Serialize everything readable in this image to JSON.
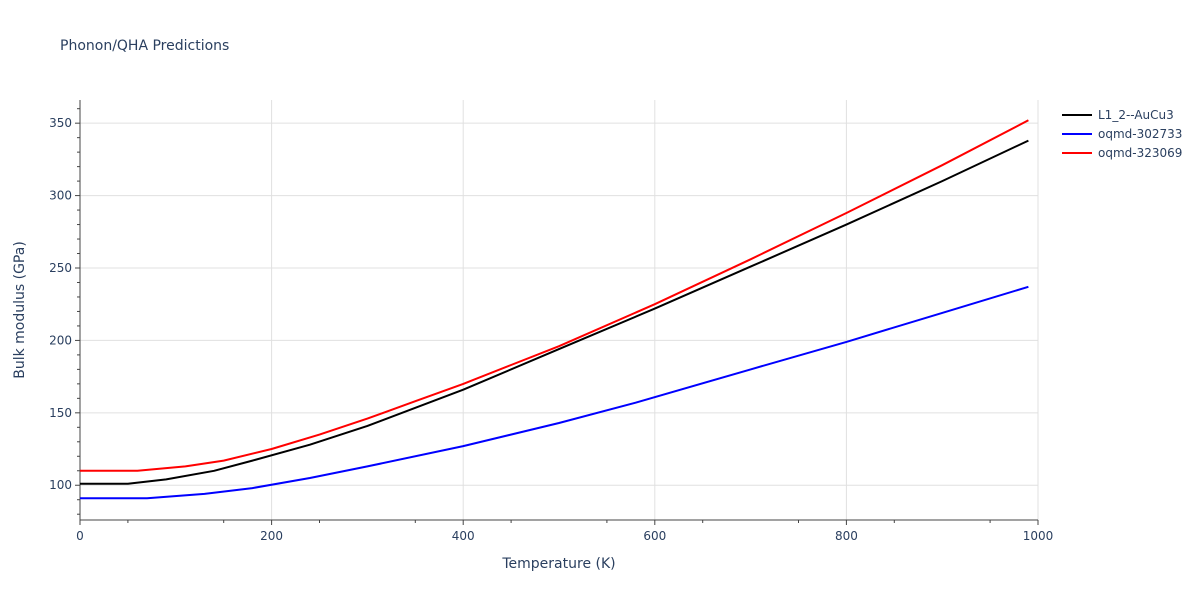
{
  "chart_data": {
    "type": "line",
    "title": "Phonon/QHA Predictions",
    "xlabel": "Temperature (K)",
    "ylabel": "Bulk modulus (GPa)",
    "xlim": [
      0,
      1000
    ],
    "ylim": [
      76,
      366
    ],
    "xticks": [
      0,
      200,
      400,
      600,
      800,
      1000
    ],
    "yticks": [
      100,
      150,
      200,
      250,
      300,
      350
    ],
    "grid": true,
    "legend_position": "top-right",
    "series": [
      {
        "name": "L1_2--AuCu3",
        "color": "#000000",
        "x": [
          0,
          50,
          90,
          140,
          180,
          240,
          300,
          400,
          500,
          600,
          700,
          800,
          900,
          990
        ],
        "y": [
          101,
          101,
          104,
          110,
          117,
          128,
          141,
          166,
          194,
          222,
          251,
          280,
          310,
          338
        ]
      },
      {
        "name": "oqmd-302733",
        "color": "#0000ff",
        "x": [
          0,
          70,
          130,
          180,
          240,
          300,
          400,
          500,
          580,
          700,
          800,
          900,
          990
        ],
        "y": [
          91,
          91,
          94,
          98,
          105,
          113,
          127,
          143,
          157,
          180,
          199,
          219,
          237
        ]
      },
      {
        "name": "oqmd-323069",
        "color": "#ff0000",
        "x": [
          0,
          60,
          110,
          150,
          200,
          250,
          300,
          350,
          400,
          450,
          500,
          600,
          700,
          800,
          900,
          990
        ],
        "y": [
          110,
          110,
          113,
          117,
          125,
          135,
          146,
          158,
          170,
          183,
          196,
          225,
          256,
          288,
          321,
          352
        ]
      }
    ]
  }
}
